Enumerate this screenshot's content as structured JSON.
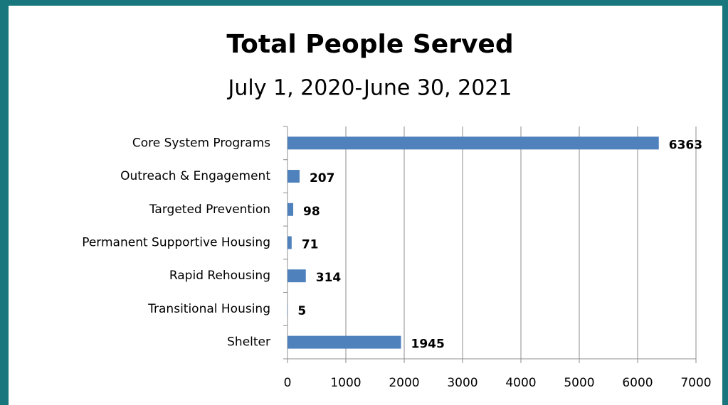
{
  "chart_data": {
    "type": "bar",
    "orientation": "horizontal",
    "title": "Total People Served",
    "subtitle": "July 1, 2020-June 30, 2021",
    "categories": [
      "Core System Programs",
      "Outreach & Engagement",
      "Targeted Prevention",
      "Permanent Supportive Housing",
      "Rapid Rehousing",
      "Transitional Housing",
      "Shelter"
    ],
    "values": [
      6363,
      207,
      98,
      71,
      314,
      5,
      1945
    ],
    "color": "#4f81bd",
    "xlim": [
      0,
      7000
    ],
    "xticks": [
      0,
      1000,
      2000,
      3000,
      4000,
      5000,
      6000,
      7000
    ],
    "grid": true
  }
}
